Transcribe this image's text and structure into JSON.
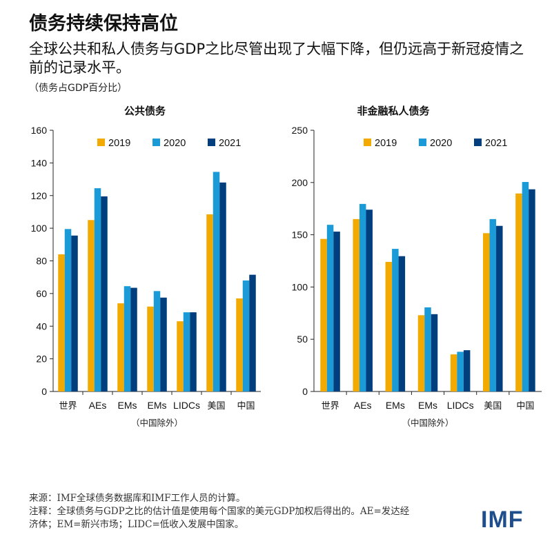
{
  "title": "债务持续保持高位",
  "subtitle": "全球公共和私人债务与GDP之比尽管出现了大幅下降，但仍远高于新冠疫情之前的记录水平。",
  "unit_note": "（债务占GDP百分比）",
  "colors": {
    "2019": "#f2a900",
    "2020": "#1a9bd7",
    "2021": "#003e7e",
    "axis": "#222222"
  },
  "chart_data": [
    {
      "type": "bar",
      "title": "公共债务",
      "categories": [
        "世界",
        "AEs",
        "EMs",
        "EMs",
        "LIDCs",
        "美国",
        "中国"
      ],
      "sub_note": "（中国除外）",
      "series": [
        {
          "name": "2019",
          "values": [
            84,
            105,
            54,
            52,
            43,
            108.5,
            57
          ]
        },
        {
          "name": "2020",
          "values": [
            99.5,
            124.5,
            64.5,
            61.5,
            48.5,
            134.5,
            68
          ]
        },
        {
          "name": "2021",
          "values": [
            95.5,
            119.5,
            63.5,
            57.5,
            48.5,
            128,
            71.5
          ]
        }
      ],
      "ylim": [
        0,
        160
      ],
      "yticks": [
        0,
        20,
        40,
        60,
        80,
        100,
        120,
        140,
        160
      ]
    },
    {
      "type": "bar",
      "title": "非金融私人债务",
      "categories": [
        "世界",
        "AEs",
        "EMs",
        "EMs",
        "LIDCs",
        "美国",
        "中国"
      ],
      "sub_note": "（中国除外）",
      "series": [
        {
          "name": "2019",
          "values": [
            146,
            165,
            124,
            73,
            35.5,
            151.5,
            189.5
          ]
        },
        {
          "name": "2020",
          "values": [
            159.5,
            179.5,
            136.5,
            80.5,
            38,
            165,
            200.5
          ]
        },
        {
          "name": "2021",
          "values": [
            153,
            174,
            129.5,
            74,
            39.5,
            158.5,
            193.5
          ]
        }
      ],
      "ylim": [
        0,
        250
      ],
      "yticks": [
        0,
        50,
        100,
        150,
        200,
        250
      ]
    }
  ],
  "footer": {
    "source": "来源：IMF全球债务数据库和IMF工作人员的计算。",
    "note_line1": "注释：全球债务与GDP之比的估计值是使用每个国家的美元GDP加权后得出的。AE=发达经",
    "note_line2": "济体；EM=新兴市场；LIDC=低收入发展中国家。"
  },
  "logo": "IMF"
}
